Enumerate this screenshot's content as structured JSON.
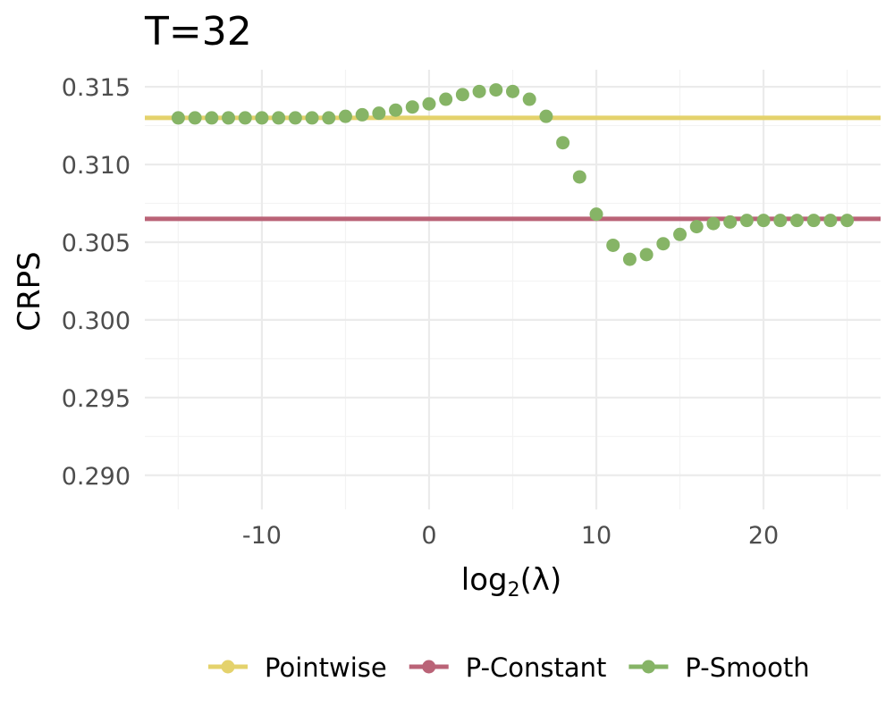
{
  "chart_data": {
    "type": "scatter",
    "title": "T=32",
    "xlabel_base": "log",
    "xlabel_sub": "2",
    "xlabel_arg": "(λ)",
    "ylabel": "CRPS",
    "xlim": [
      -17,
      27
    ],
    "ylim": [
      0.2878,
      0.3161
    ],
    "x_ticks": [
      -10,
      0,
      10,
      20
    ],
    "x_tick_labels": [
      "-10",
      "0",
      "10",
      "20"
    ],
    "x_minor": [
      -15,
      -5,
      5,
      15,
      25
    ],
    "y_ticks": [
      0.29,
      0.295,
      0.3,
      0.305,
      0.31,
      0.315
    ],
    "y_tick_labels": [
      "0.290",
      "0.295",
      "0.300",
      "0.305",
      "0.310",
      "0.315"
    ],
    "y_minor": [
      0.2925,
      0.2975,
      0.3025,
      0.3075,
      0.3125
    ],
    "grid": true,
    "legend_position": "bottom",
    "series": [
      {
        "name": "Pointwise",
        "kind": "hline",
        "value": 0.313,
        "color": "#E4D26C"
      },
      {
        "name": "P-Constant",
        "kind": "hline",
        "value": 0.3065,
        "color": "#BA6377"
      },
      {
        "name": "P-Smooth",
        "kind": "points",
        "color": "#86B466",
        "x": [
          -15,
          -14,
          -13,
          -12,
          -11,
          -10,
          -9,
          -8,
          -7,
          -6,
          -5,
          -4,
          -3,
          -2,
          -1,
          0,
          1,
          2,
          3,
          4,
          5,
          6,
          7,
          8,
          9,
          10,
          11,
          12,
          13,
          14,
          15,
          16,
          17,
          18,
          19,
          20,
          21,
          22,
          23,
          24,
          25
        ],
        "y": [
          0.313,
          0.313,
          0.313,
          0.313,
          0.313,
          0.313,
          0.313,
          0.313,
          0.313,
          0.313,
          0.3131,
          0.3132,
          0.3133,
          0.3135,
          0.3137,
          0.3139,
          0.3142,
          0.3145,
          0.3147,
          0.3148,
          0.3147,
          0.3142,
          0.3131,
          0.3114,
          0.3092,
          0.3068,
          0.3048,
          0.3039,
          0.3042,
          0.3049,
          0.3055,
          0.306,
          0.3062,
          0.3063,
          0.3064,
          0.3064,
          0.3064,
          0.3064,
          0.3064,
          0.3064,
          0.3064
        ]
      }
    ]
  }
}
